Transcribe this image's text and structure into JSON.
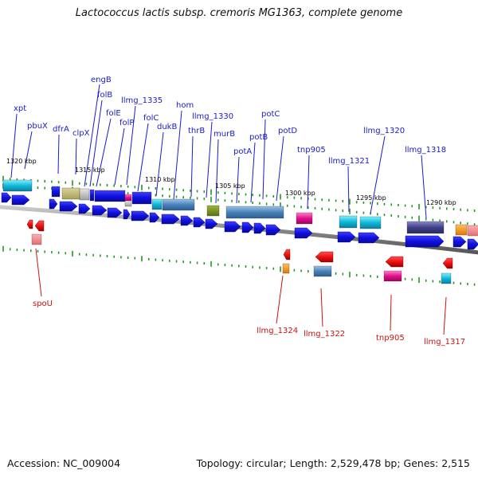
{
  "title": "Lactococcus lactis subsp. cremoris MG1363, complete genome",
  "footer": {
    "accession": "Accession: NC_009004",
    "summary": "Topology: circular; Length: 2,529,478 bp; Genes: 2,515"
  },
  "colors": {
    "forward_label": "#1a1acc",
    "reverse_label": "#cc1111",
    "forward_gene": "#1010dd",
    "reverse_gene": "#ee1111",
    "tick": "#229922",
    "backbone": "#999999"
  },
  "scale": {
    "ticks": [
      "1320 kbp",
      "1315 kbp",
      "1310 kbp",
      "1305 kbp",
      "1300 kbp",
      "1295 kbp",
      "1290 kbp"
    ]
  },
  "forward_labels": [
    "xpt",
    "pbuX",
    "dfrA",
    "clpX",
    "engB",
    "folB",
    "folE",
    "folP",
    "llmg_1335",
    "folC",
    "dukB",
    "hom",
    "thrB",
    "llmg_1330",
    "murB",
    "potA",
    "potB",
    "potC",
    "potD",
    "tnp905",
    "llmg_1321",
    "llmg_1320",
    "llmg_1318"
  ],
  "reverse_labels": [
    "spoU",
    "llmg_1324",
    "llmg_1322",
    "tnp905",
    "llmg_1317"
  ]
}
